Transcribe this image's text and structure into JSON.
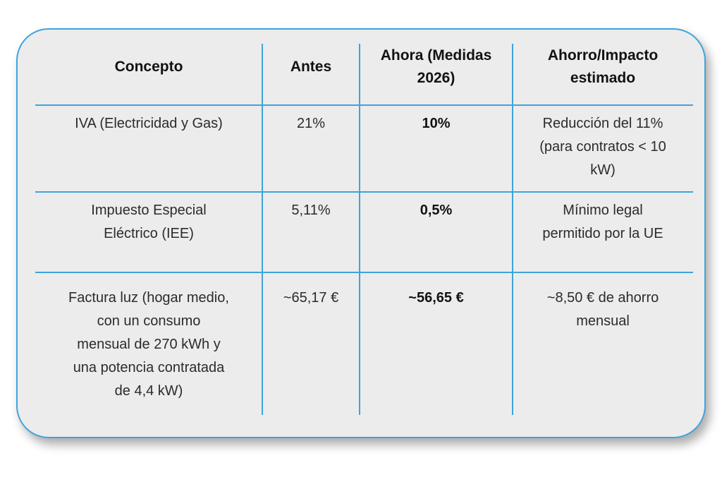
{
  "card": {
    "background_color": "#ececec",
    "border_color": "#3fa3db",
    "grid_line_color": "#3fa3db",
    "header_text_color": "#121212",
    "body_text_color": "#2b2b2b"
  },
  "table": {
    "header": [
      "Concepto",
      "Antes",
      "Ahora (Medidas\n2026)",
      "Ahorro/Impacto\nestimado"
    ],
    "rows": [
      [
        "IVA (Electricidad y Gas)",
        "21%",
        "10%",
        "Reducción del 11%\n(para contratos < 10\nkW)"
      ],
      [
        "Impuesto Especial\nEléctrico (IEE)",
        "5,11%",
        "0,5%",
        "Mínimo legal\npermitido por la UE"
      ],
      [
        "Factura luz (hogar medio,\ncon un consumo\nmensual de 270 kWh y\nuna potencia contratada\nde 4,4 kW)",
        "~65,17 €",
        "~56,65 €",
        "~8,50 € de ahorro\nmensual"
      ]
    ]
  },
  "chart_data": {
    "type": "table",
    "title": "",
    "columns": [
      "Concepto",
      "Antes",
      "Ahora (Medidas 2026)",
      "Ahorro/Impacto estimado"
    ],
    "rows": [
      [
        "IVA (Electricidad y Gas)",
        "21%",
        "10%",
        "Reducción del 11% (para contratos < 10 kW)"
      ],
      [
        "Impuesto Especial Eléctrico (IEE)",
        "5,11%",
        "0,5%",
        "Mínimo legal permitido por la UE"
      ],
      [
        "Factura luz (hogar medio, con un consumo mensual de 270 kWh y una potencia contratada de 4,4 kW)",
        "~65,17 €",
        "~56,65 €",
        "~8,50 € de ahorro mensual"
      ]
    ],
    "emphasis": {
      "bold_header_row": true,
      "bold_column": "Ahora (Medidas 2026)"
    }
  }
}
